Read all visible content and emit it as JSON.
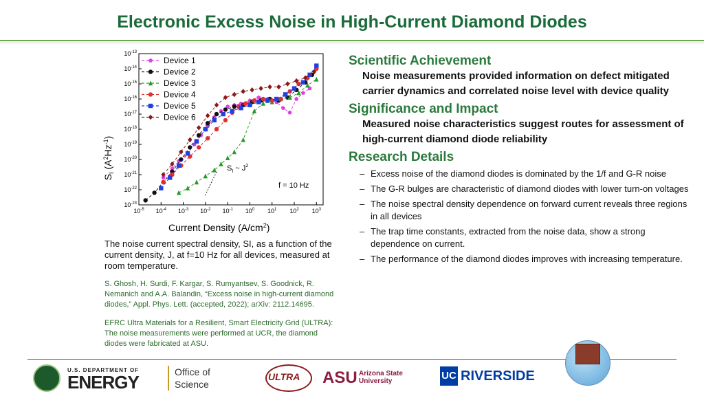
{
  "title": "Electronic Excess Noise in High-Current Diamond Diodes",
  "chart_data": {
    "type": "scatter",
    "x_scale": "log",
    "y_scale": "log",
    "xlim": [
      1e-05,
      2000
    ],
    "ylim": [
      1e-23,
      1e-13
    ],
    "xlabel": "Current Density (A/cm",
    "xlabel_sup": "2",
    "xlabel_end": ")",
    "ylabel_s": "S",
    "ylabel_sub": "I",
    "ylabel_unit1": " (A",
    "ylabel_sup1": "2",
    "ylabel_unit2": "Hz",
    "ylabel_sup2": "-1",
    "ylabel_end": ")",
    "x_ticks": [
      {
        "base": "10",
        "exp": "-5",
        "v": -5
      },
      {
        "base": "10",
        "exp": "-4",
        "v": -4
      },
      {
        "base": "10",
        "exp": "-3",
        "v": -3
      },
      {
        "base": "10",
        "exp": "-2",
        "v": -2
      },
      {
        "base": "10",
        "exp": "-1",
        "v": -1
      },
      {
        "base": "10",
        "exp": "0",
        "v": 0
      },
      {
        "base": "10",
        "exp": "1",
        "v": 1
      },
      {
        "base": "10",
        "exp": "2",
        "v": 2
      },
      {
        "base": "10",
        "exp": "3",
        "v": 3
      }
    ],
    "y_ticks": [
      {
        "base": "10",
        "exp": "-23",
        "v": -23
      },
      {
        "base": "10",
        "exp": "-22",
        "v": -22
      },
      {
        "base": "10",
        "exp": "-21",
        "v": -21
      },
      {
        "base": "10",
        "exp": "-20",
        "v": -20
      },
      {
        "base": "10",
        "exp": "-19",
        "v": -19
      },
      {
        "base": "10",
        "exp": "-18",
        "v": -18
      },
      {
        "base": "10",
        "exp": "-17",
        "v": -17
      },
      {
        "base": "10",
        "exp": "-16",
        "v": -16
      },
      {
        "base": "10",
        "exp": "-15",
        "v": -15
      },
      {
        "base": "10",
        "exp": "-14",
        "v": -14
      },
      {
        "base": "10",
        "exp": "-13",
        "v": -13
      }
    ],
    "legend_position": "top-left",
    "grid": false,
    "series": [
      {
        "name": "Device 1",
        "color": "#e040e0",
        "marker": "pentagon",
        "log_x": [
          -3.9,
          -3.5,
          -3.2,
          -2.8,
          -2.5,
          -2.2,
          -1.9,
          -1.6,
          -1.3,
          -1.0,
          -0.7,
          -0.4,
          0.0,
          0.4,
          0.8,
          1.2,
          1.5,
          1.8,
          2.1,
          2.4,
          2.7
        ],
        "log_y": [
          -21.2,
          -20.6,
          -20.1,
          -19.6,
          -19.0,
          -18.4,
          -17.8,
          -17.2,
          -16.8,
          -16.5,
          -16.4,
          -16.3,
          -16.1,
          -15.9,
          -16.0,
          -16.2,
          -16.6,
          -16.9,
          -16.0,
          -15.6,
          -15.3
        ]
      },
      {
        "name": "Device 2",
        "color": "#111111",
        "marker": "circle",
        "log_x": [
          -4.7,
          -4.3,
          -3.9,
          -3.5,
          -3.1,
          -2.7,
          -2.3,
          -1.9,
          -1.5,
          -1.1,
          -0.7,
          -0.3,
          0.1,
          0.5,
          0.9,
          1.3,
          1.7,
          2.1,
          2.5,
          2.8
        ],
        "log_y": [
          -22.7,
          -22.2,
          -21.5,
          -20.8,
          -20.0,
          -19.2,
          -18.4,
          -17.6,
          -17.0,
          -16.7,
          -16.5,
          -16.4,
          -16.2,
          -16.1,
          -16.0,
          -16.1,
          -15.9,
          -15.4,
          -14.9,
          -14.4
        ]
      },
      {
        "name": "Device 3",
        "color": "#2a9a2a",
        "marker": "triangle",
        "log_x": [
          -3.2,
          -2.8,
          -2.4,
          -2.0,
          -1.6,
          -1.3,
          -1.0,
          -0.7,
          -0.3,
          0.2,
          0.6,
          1.0,
          1.4,
          1.8,
          2.2,
          2.6,
          3.0
        ],
        "log_y": [
          -22.2,
          -21.9,
          -21.5,
          -21.1,
          -20.7,
          -20.3,
          -19.9,
          -19.5,
          -18.7,
          -16.8,
          -16.3,
          -16.2,
          -16.0,
          -15.9,
          -15.6,
          -15.1,
          -14.7
        ]
      },
      {
        "name": "Device 4",
        "color": "#e03030",
        "marker": "circle",
        "log_x": [
          -3.9,
          -3.5,
          -3.1,
          -2.7,
          -2.3,
          -1.9,
          -1.5,
          -1.1,
          -0.8,
          -0.5,
          -0.2,
          0.2,
          0.6,
          1.0,
          1.4,
          1.8,
          2.2,
          2.6,
          3.0
        ],
        "log_y": [
          -21.5,
          -21.0,
          -20.4,
          -19.8,
          -19.2,
          -18.6,
          -18.0,
          -17.4,
          -16.9,
          -16.5,
          -16.3,
          -16.1,
          -16.0,
          -16.1,
          -16.0,
          -15.5,
          -15.0,
          -14.6,
          -14.0
        ]
      },
      {
        "name": "Device 5",
        "color": "#2040e0",
        "marker": "square",
        "log_x": [
          -4.0,
          -3.6,
          -3.2,
          -2.8,
          -2.4,
          -2.0,
          -1.6,
          -1.2,
          -0.8,
          -0.4,
          0.0,
          0.4,
          0.8,
          1.2,
          1.6,
          2.0,
          2.4,
          2.7,
          3.0
        ],
        "log_y": [
          -21.9,
          -21.2,
          -20.4,
          -19.6,
          -18.8,
          -18.0,
          -17.4,
          -17.0,
          -16.8,
          -16.6,
          -16.4,
          -16.2,
          -16.1,
          -16.0,
          -15.7,
          -15.3,
          -14.9,
          -14.4,
          -13.8
        ]
      },
      {
        "name": "Device 6",
        "color": "#8a1a1a",
        "marker": "diamond",
        "log_x": [
          -3.9,
          -3.5,
          -3.1,
          -2.7,
          -2.3,
          -1.9,
          -1.5,
          -1.1,
          -0.7,
          -0.3,
          0.1,
          0.5,
          0.9,
          1.3,
          1.7,
          2.1,
          2.5,
          2.9
        ],
        "log_y": [
          -21.0,
          -20.3,
          -19.5,
          -18.7,
          -17.9,
          -17.1,
          -16.4,
          -15.9,
          -15.7,
          -15.5,
          -15.4,
          -15.3,
          -15.2,
          -15.2,
          -15.0,
          -14.8,
          -14.6,
          -14.2
        ]
      }
    ],
    "annotation_slope_s": "S",
    "annotation_slope_sub": "I",
    "annotation_slope_mid": " ~ J",
    "annotation_slope_sup": "2",
    "annotation_freq": "f = 10 Hz"
  },
  "caption": "The noise current spectral density, SI, as a function of the current density, J, at f=10 Hz for all devices, measured at room temperature.",
  "citation": "S. Ghosh, H. Surdi, F. Kargar, S. Rumyantsev, S. Goodnick, R. Nemanich and A.A. Balandin, “Excess noise in high-current diamond diodes,” Appl. Phys. Lett. (accepted, 2022); arXiv: 2112.14695.",
  "efrc_note": "EFRC Ultra Materials for a Resilient, Smart Electricity Grid (ULTRA):  The noise measurements were performed at UCR, the diamond diodes were fabricated at ASU.",
  "scientific_achievement": {
    "heading": "Scientific Achievement",
    "body": "Noise measurements provided information on defect mitigated carrier dynamics and correlated noise level with device quality"
  },
  "significance": {
    "heading": "Significance and Impact",
    "body": "Measured noise characteristics suggest routes for assessment of high-current diamond diode reliability"
  },
  "research_details": {
    "heading": "Research Details",
    "items": [
      "Excess noise of the diamond diodes is dominated by the 1/f and G-R noise",
      "The G-R bulges are characteristic of diamond diodes with lower turn-on voltages",
      "The noise spectral density dependence on forward current reveals three regions in all devices",
      "The trap time constants, extracted from the noise data, show a strong dependence on current.",
      "The performance of the diamond diodes improves with increasing temperature."
    ]
  },
  "footer": {
    "doe_small": "U.S. DEPARTMENT OF",
    "doe_big": "ENERGY",
    "office_line1": "Office of",
    "office_line2": "Science",
    "ultra": "ULTRA",
    "asu_mark": "ASU",
    "asu_line1": "Arizona State",
    "asu_line2": "University",
    "ucr_mark": "UC",
    "ucr_text": "RIVERSIDE"
  },
  "colors": {
    "title": "#1a6b3a",
    "heading": "#2a7a3c",
    "citation": "#2a6b2a"
  }
}
